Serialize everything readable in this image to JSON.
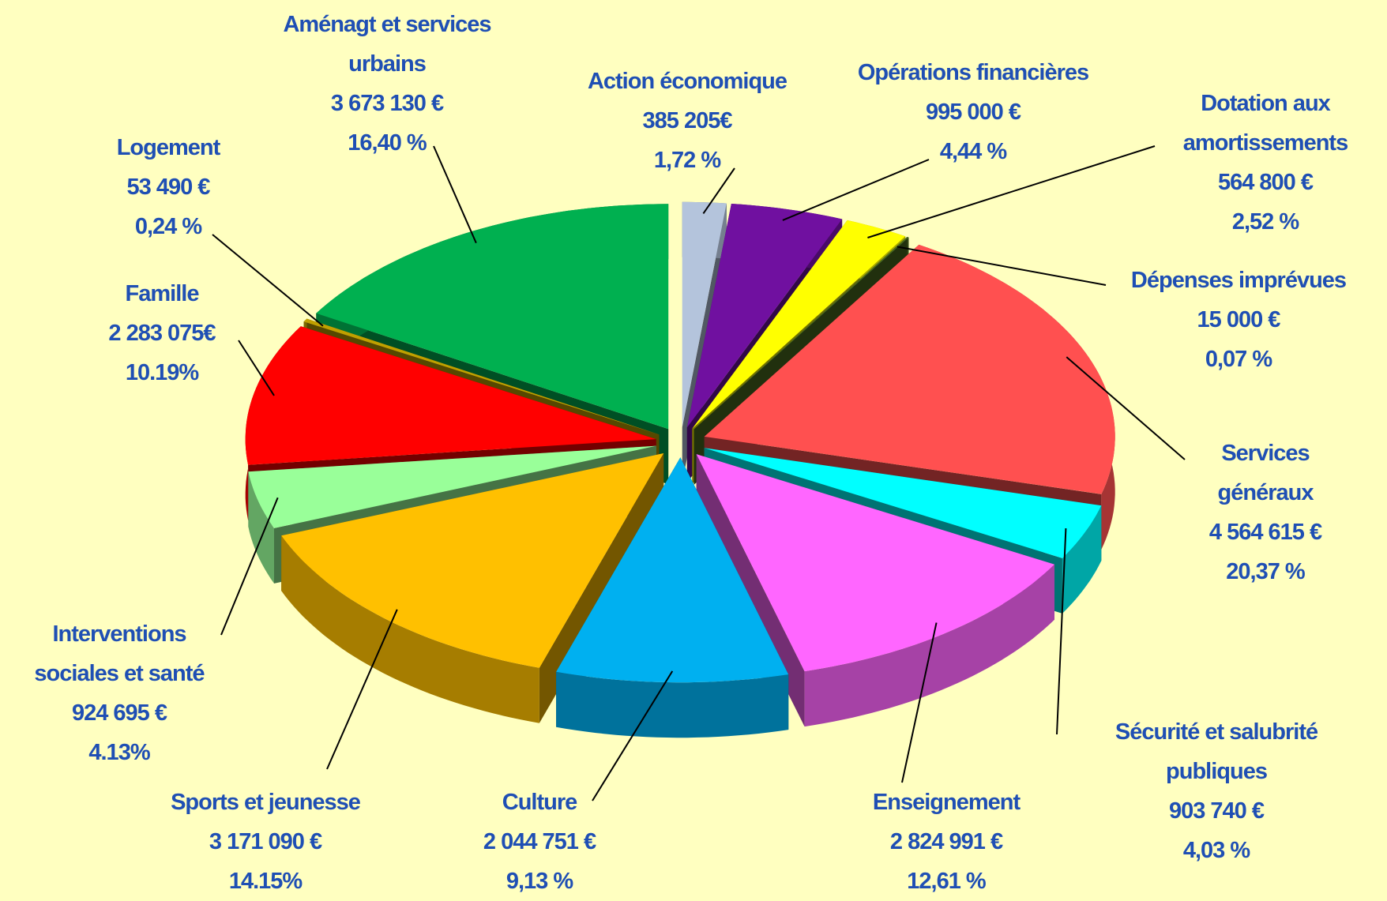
{
  "chart_data": {
    "type": "pie",
    "categories": [
      "Action économique",
      "Opérations financières",
      "Dotation aux amortissements",
      "Dépenses imprévues",
      "Services généraux",
      "Sécurité et salubrité publiques",
      "Enseignement",
      "Culture",
      "Sports et jeunesse",
      "Interventions sociales et santé",
      "Famille",
      "Logement",
      "Aménagt et services urbains"
    ],
    "amount_labels": [
      "385 205€",
      "995 000 €",
      "564 800 €",
      "15 000 €",
      "4 564 615 €",
      "903 740 €",
      "2 824 991 €",
      "2 044 751 €",
      "3 171 090 €",
      "924 695 €",
      "2 283 075€",
      "53 490 €",
      "3  673  130 €"
    ],
    "values": [
      1.72,
      4.44,
      2.52,
      0.07,
      20.37,
      4.03,
      12.61,
      9.13,
      14.15,
      4.13,
      10.19,
      0.24,
      16.4
    ],
    "value_labels": [
      "1,72 %",
      "4,44 %",
      "2,52 %",
      "0,07 %",
      "20,37 %",
      "4,03 %",
      "12,61 %",
      "9,13 %",
      "14.15%",
      "4.13%",
      "10.19%",
      "0,24 %",
      "16,40 %"
    ],
    "colors": [
      "#b4c4dc",
      "#7010a0",
      "#ffff00",
      "#4a6a20",
      "#ff5050",
      "#00ffff",
      "#ff66ff",
      "#00b0f0",
      "#ffc000",
      "#99ff99",
      "#ff0000",
      "#c0a000",
      "#00b050"
    ]
  }
}
